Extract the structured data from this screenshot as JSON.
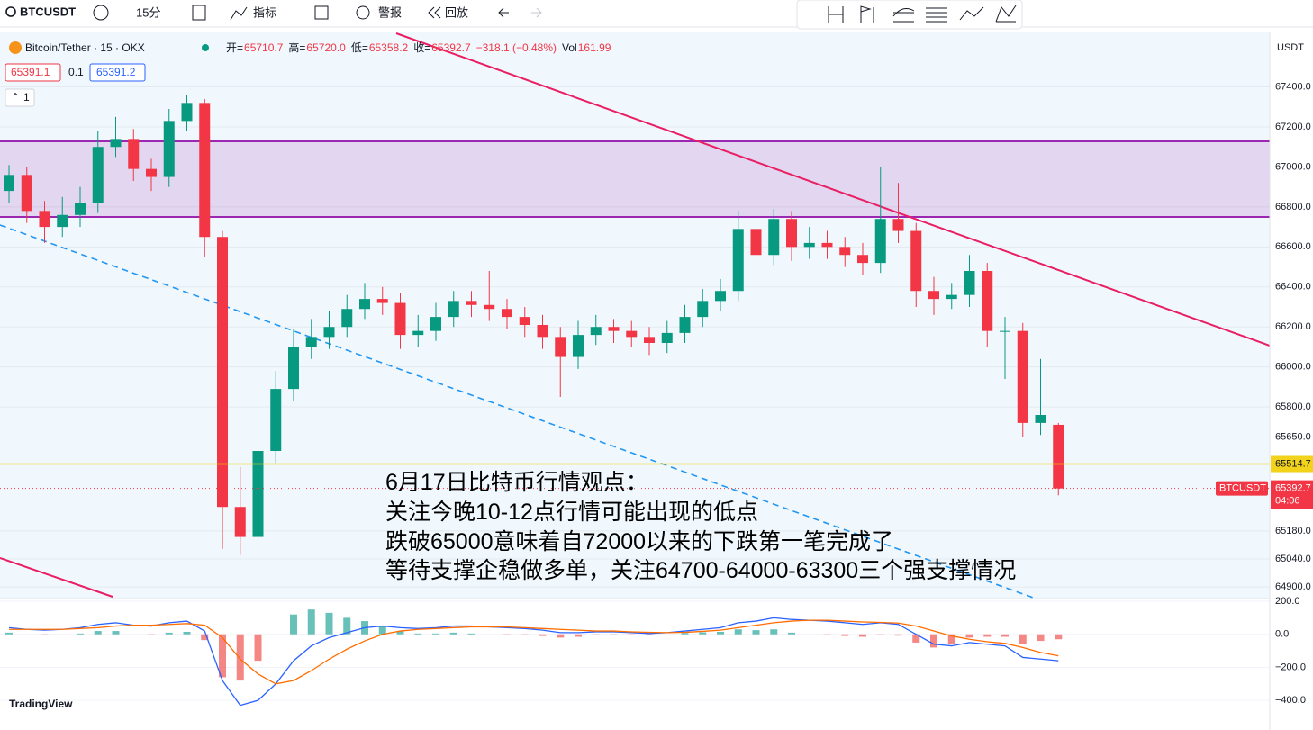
{
  "toolbar": {
    "symbol": "BTCUSDT",
    "interval": "15分",
    "indicators": "指标",
    "alert": "警报",
    "replay": "回放"
  },
  "legend": {
    "title": "Bitcoin/Tether · 15 · OKX",
    "open_label": "开=",
    "open": "65710.7",
    "high_label": "高=",
    "high": "65720.0",
    "low_label": "低=",
    "low": "65358.2",
    "close_label": "收=",
    "close": "65392.7",
    "change": "−318.1 (−0.48%)",
    "vol_label": "Vol",
    "vol": 161.99
  },
  "quote": {
    "bid": 65391.1,
    "spread": 0.1,
    "ask": 65391.2,
    "layers": 1
  },
  "chart_data": [
    {
      "type": "candlestick",
      "currency": "USDT",
      "up_color": "#089981",
      "down_color": "#f23645",
      "grid": true,
      "open": [
        66880,
        66960,
        66780,
        66700,
        66760,
        66820,
        67100,
        67140,
        66990,
        66950,
        67230,
        67320,
        66650,
        65300,
        65150,
        65580,
        65890,
        66100,
        66150,
        66200,
        66290,
        66340,
        66320,
        66160,
        66180,
        66250,
        66330,
        66310,
        66290,
        66250,
        66210,
        66150,
        66050,
        66160,
        66200,
        66180,
        66150,
        66120,
        66170,
        66250,
        66330,
        66380,
        66690,
        66560,
        66740,
        66600,
        66620,
        66600,
        66560,
        66520,
        66740,
        66680,
        66380,
        66340,
        66360,
        66480,
        66180,
        66180,
        65720,
        65710.7
      ],
      "high": [
        67010,
        67000,
        66830,
        66850,
        66900,
        67180,
        67250,
        67190,
        67040,
        67290,
        67360,
        67340,
        66680,
        65500,
        66650,
        65980,
        66190,
        66240,
        66280,
        66360,
        66420,
        66400,
        66370,
        66260,
        66320,
        66380,
        66380,
        66480,
        66340,
        66300,
        66260,
        66200,
        66230,
        66260,
        66240,
        66230,
        66200,
        66230,
        66310,
        66390,
        66440,
        66780,
        66740,
        66790,
        66780,
        66700,
        66680,
        66650,
        66620,
        67000,
        66920,
        66720,
        66450,
        66420,
        66560,
        66520,
        66250,
        66220,
        66040,
        65720.0
      ],
      "low": [
        66820,
        66720,
        66620,
        66650,
        66700,
        66770,
        67050,
        66930,
        66880,
        66900,
        67180,
        66550,
        65090,
        65060,
        65100,
        65520,
        65830,
        66040,
        66090,
        66150,
        66240,
        66260,
        66090,
        66100,
        66130,
        66200,
        66250,
        66230,
        66190,
        66150,
        66090,
        65850,
        65990,
        66110,
        66120,
        66100,
        66060,
        66070,
        66120,
        66200,
        66280,
        66330,
        66500,
        66510,
        66530,
        66540,
        66540,
        66500,
        66460,
        66470,
        66620,
        66300,
        66260,
        66290,
        66300,
        66100,
        65940,
        65650,
        65660,
        65358.2
      ],
      "close": [
        66960,
        66780,
        66700,
        66760,
        66820,
        67100,
        67140,
        66990,
        66950,
        67230,
        67320,
        66650,
        65300,
        65150,
        65580,
        65890,
        66100,
        66150,
        66200,
        66290,
        66340,
        66320,
        66160,
        66180,
        66250,
        66330,
        66310,
        66290,
        66250,
        66210,
        66150,
        66050,
        66160,
        66200,
        66180,
        66150,
        66120,
        66170,
        66250,
        66330,
        66380,
        66690,
        66560,
        66740,
        66600,
        66620,
        66600,
        66560,
        66520,
        66740,
        66680,
        66380,
        66340,
        66360,
        66480,
        66180,
        66180,
        65720,
        65760,
        65392.7
      ],
      "ylim": [
        64842,
        67677
      ],
      "yticks": [
        {
          "value": 67400,
          "label": "67400.0"
        },
        {
          "value": 67200,
          "label": "67200.0"
        },
        {
          "value": 67000,
          "label": "67000.0"
        },
        {
          "value": 66800,
          "label": "66800.0"
        },
        {
          "value": 66600,
          "label": "66600.0"
        },
        {
          "value": 66400,
          "label": "66400.0"
        },
        {
          "value": 66200,
          "label": "66200.0"
        },
        {
          "value": 66000,
          "label": "66000.0"
        },
        {
          "value": 65800,
          "label": "65800.0"
        },
        {
          "value": 65650,
          "label": "65650.0"
        },
        {
          "value": 65180,
          "label": "65180.0"
        },
        {
          "value": 65040,
          "label": "65040.0"
        },
        {
          "value": 64900,
          "label": "64900.0"
        }
      ],
      "horizontal_line": {
        "value": 65514.7,
        "color": "#f2d21b"
      },
      "last_price_tag": "BTCUSDT",
      "countdown": "04:06"
    },
    {
      "type": "macd",
      "macd_color": "#2962ff",
      "signal_color": "#ff6d00",
      "hist_up_color": "#26a69a",
      "hist_down_color": "#ef5350",
      "macd": [
        40,
        30,
        25,
        30,
        40,
        60,
        70,
        55,
        50,
        70,
        80,
        20,
        -280,
        -430,
        -400,
        -300,
        -160,
        -70,
        -20,
        10,
        40,
        50,
        40,
        35,
        40,
        50,
        50,
        45,
        40,
        35,
        25,
        10,
        10,
        15,
        15,
        10,
        5,
        10,
        20,
        30,
        40,
        70,
        80,
        100,
        90,
        85,
        80,
        70,
        60,
        70,
        60,
        0,
        -60,
        -70,
        -50,
        -60,
        -70,
        -140,
        -150,
        -160
      ],
      "signal": [
        30,
        30,
        30,
        30,
        35,
        40,
        50,
        55,
        55,
        60,
        65,
        55,
        -20,
        -150,
        -240,
        -300,
        -280,
        -220,
        -150,
        -90,
        -40,
        0,
        20,
        30,
        35,
        40,
        45,
        45,
        45,
        40,
        35,
        30,
        25,
        20,
        20,
        15,
        12,
        10,
        12,
        18,
        25,
        40,
        55,
        70,
        80,
        85,
        85,
        80,
        75,
        72,
        68,
        50,
        20,
        -10,
        -30,
        -45,
        -55,
        -80,
        -110,
        -130
      ],
      "histogram": [
        10,
        0,
        -5,
        0,
        5,
        20,
        20,
        0,
        -5,
        10,
        15,
        -35,
        -260,
        -280,
        -160,
        0,
        120,
        150,
        130,
        100,
        80,
        50,
        20,
        5,
        5,
        10,
        5,
        0,
        -5,
        -5,
        -10,
        -20,
        -15,
        -5,
        -5,
        -5,
        -7,
        0,
        8,
        12,
        15,
        30,
        25,
        30,
        10,
        0,
        -5,
        -10,
        -15,
        -2,
        -8,
        -50,
        -80,
        -60,
        -20,
        -15,
        -15,
        -60,
        -40,
        -30
      ],
      "ylim": [
        -519,
        211
      ],
      "yticks": [
        {
          "value": 200,
          "label": "200.0"
        },
        {
          "value": 0,
          "label": "0.0"
        },
        {
          "value": -200,
          "label": "−200.0"
        },
        {
          "value": -400,
          "label": "−400.0"
        }
      ]
    }
  ],
  "annotation": [
    "6月17日比特币行情观点：",
    "关注今晚10-12点行情可能出现的低点",
    "跌破65000意味着自72000以来的下跌第一笔完成了",
    "等待支撑企稳做多单，关注64700-64000-63300三个强支撑情况"
  ],
  "watermark": "TradingView"
}
